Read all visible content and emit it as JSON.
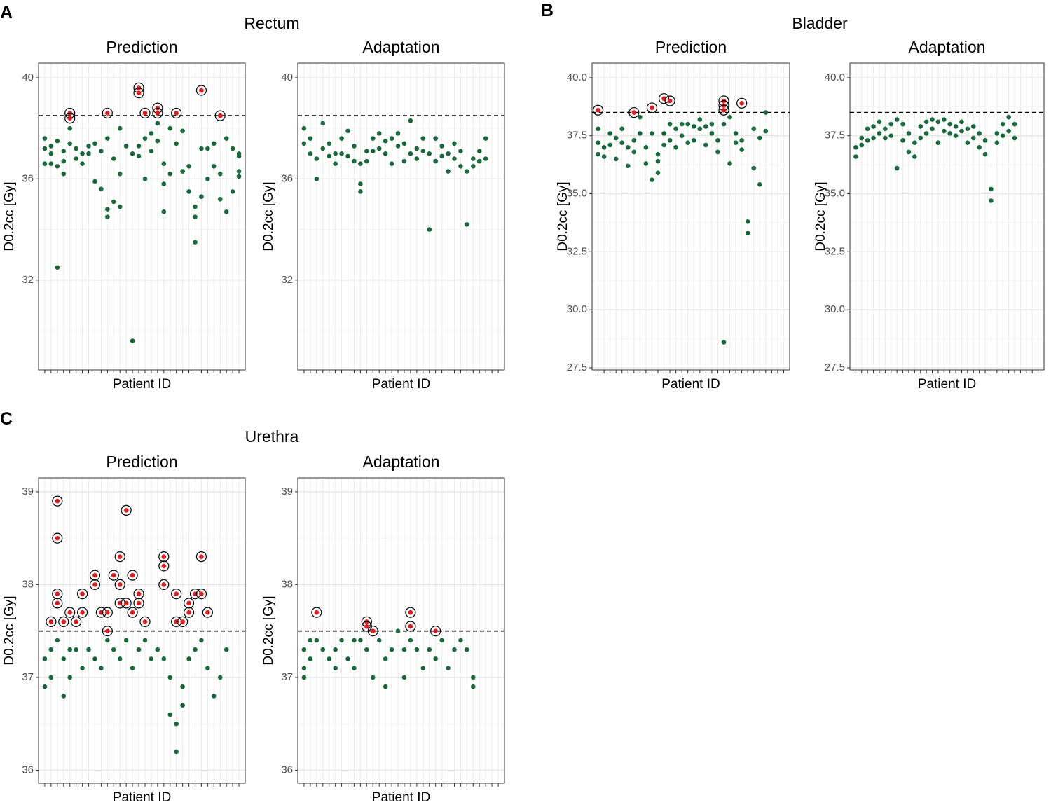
{
  "groups": [
    {
      "letter": "A",
      "title": "Rectum"
    },
    {
      "letter": "B",
      "title": "Bladder"
    },
    {
      "letter": "C",
      "title": "Urethra"
    }
  ],
  "chart_data": [
    {
      "type": "scatter",
      "title": "Prediction",
      "xlabel": "Patient ID",
      "ylabel": "D0.2cc [Gy]",
      "xlim": [
        0,
        33
      ],
      "xticks": [
        1,
        2,
        3,
        4,
        5,
        6,
        7,
        8,
        9,
        10,
        11,
        12,
        13,
        14,
        15,
        16,
        17,
        18,
        19,
        20,
        21,
        22,
        23,
        24,
        25,
        26,
        27,
        28,
        29,
        30,
        31,
        32
      ],
      "ylim": [
        28.45,
        40.58
      ],
      "yticks": [
        32,
        36,
        40
      ],
      "threshold": 38.5,
      "grid": true,
      "series": [
        {
          "color": "#18693a",
          "x": [
            1,
            1,
            1,
            2,
            2,
            2,
            3,
            3,
            3,
            4,
            4,
            4,
            5,
            5,
            6,
            6,
            7,
            7,
            8,
            8,
            9,
            9,
            10,
            10,
            11,
            11,
            11,
            12,
            12,
            13,
            13,
            13,
            14,
            15,
            15,
            16,
            16,
            17,
            17,
            18,
            18,
            19,
            19,
            20,
            20,
            20,
            21,
            21,
            22,
            23,
            23,
            24,
            24,
            25,
            25,
            25,
            26,
            26,
            27,
            27,
            28,
            28,
            29,
            29,
            30,
            30,
            31,
            31,
            32,
            32,
            32,
            32
          ],
          "values": [
            37.6,
            37.2,
            36.6,
            37.3,
            37.0,
            36.6,
            32.5,
            37.5,
            36.5,
            36.2,
            37.1,
            36.7,
            38.0,
            37.4,
            37.2,
            36.8,
            37.0,
            36.6,
            37.3,
            37.0,
            35.9,
            37.4,
            35.6,
            37.1,
            34.5,
            34.8,
            37.6,
            35.1,
            36.8,
            36.2,
            38.0,
            34.9,
            37.3,
            29.6,
            37.0,
            37.3,
            36.9,
            36.0,
            37.6,
            37.8,
            37.1,
            38.2,
            37.5,
            34.7,
            35.8,
            36.6,
            38.0,
            36.2,
            37.4,
            36.3,
            37.9,
            35.5,
            36.5,
            33.5,
            34.5,
            34.9,
            37.2,
            35.3,
            37.2,
            36.0,
            36.5,
            37.4,
            35.2,
            36.2,
            34.7,
            37.6,
            35.5,
            37.2,
            36.3,
            37.0,
            36.1,
            36.9
          ]
        },
        {
          "color": "#e31a1c",
          "circled": true,
          "x": [
            5,
            5,
            11,
            16,
            16,
            17,
            19,
            19,
            22,
            26,
            29
          ],
          "values": [
            38.6,
            38.4,
            38.6,
            39.6,
            39.4,
            38.6,
            38.8,
            38.6,
            38.6,
            39.5,
            38.5
          ]
        }
      ]
    },
    {
      "type": "scatter",
      "title": "Adaptation",
      "xlabel": "Patient ID",
      "ylabel": "D0.2cc [Gy]",
      "xlim": [
        0,
        33
      ],
      "xticks": [
        1,
        2,
        3,
        4,
        5,
        6,
        7,
        8,
        9,
        10,
        11,
        12,
        13,
        14,
        15,
        16,
        17,
        18,
        19,
        20,
        21,
        22,
        23,
        24,
        25,
        26,
        27,
        28,
        29,
        30,
        31,
        32
      ],
      "ylim": [
        28.45,
        40.58
      ],
      "yticks": [
        32,
        36,
        40
      ],
      "threshold": 38.5,
      "grid": true,
      "series": [
        {
          "color": "#18693a",
          "x": [
            1,
            1,
            2,
            2,
            3,
            3,
            4,
            4,
            5,
            5,
            6,
            6,
            7,
            7,
            8,
            8,
            9,
            9,
            10,
            10,
            10,
            11,
            11,
            12,
            12,
            13,
            13,
            14,
            14,
            15,
            15,
            16,
            16,
            17,
            17,
            18,
            18,
            19,
            19,
            20,
            20,
            21,
            21,
            22,
            22,
            23,
            23,
            24,
            24,
            25,
            25,
            26,
            26,
            27,
            27,
            28,
            28,
            29,
            29,
            30,
            30
          ],
          "values": [
            38.0,
            37.4,
            37.6,
            37.0,
            36.0,
            36.8,
            38.2,
            37.2,
            37.4,
            36.9,
            37.0,
            36.6,
            37.6,
            37.0,
            37.9,
            36.9,
            37.3,
            36.7,
            36.6,
            35.5,
            35.8,
            37.1,
            36.7,
            37.6,
            37.1,
            37.8,
            37.2,
            37.5,
            37.0,
            37.6,
            36.6,
            37.8,
            37.3,
            37.4,
            36.7,
            38.3,
            37.0,
            37.2,
            36.8,
            37.6,
            37.1,
            37.0,
            34.0,
            37.6,
            36.7,
            37.3,
            36.9,
            36.3,
            37.0,
            37.4,
            36.8,
            37.1,
            36.5,
            34.2,
            36.3,
            36.8,
            36.5,
            37.1,
            36.7,
            37.6,
            36.8
          ]
        }
      ]
    },
    {
      "type": "scatter",
      "title": "Prediction",
      "xlabel": "Patient ID",
      "ylabel": "D0.2cc [Gy]",
      "xlim": [
        0,
        33
      ],
      "xticks": [
        1,
        2,
        3,
        4,
        5,
        6,
        7,
        8,
        9,
        10,
        11,
        12,
        13,
        14,
        15,
        16,
        17,
        18,
        19,
        20,
        21,
        22,
        23,
        24,
        25,
        26,
        27,
        28,
        29,
        30,
        31,
        32
      ],
      "ylim": [
        27.41,
        40.63
      ],
      "yticks": [
        27.5,
        {
          "value": 30,
          "label": "30.0"
        },
        32.5,
        {
          "value": 35,
          "label": "35.0"
        },
        37.5,
        {
          "value": 40,
          "label": "40.0"
        }
      ],
      "threshold": 38.5,
      "grid": true,
      "series": [
        {
          "color": "#18693a",
          "x": [
            1,
            1,
            1,
            2,
            2,
            3,
            3,
            4,
            4,
            5,
            5,
            6,
            6,
            7,
            7,
            8,
            8,
            9,
            9,
            10,
            10,
            11,
            11,
            11,
            12,
            12,
            13,
            13,
            14,
            14,
            15,
            15,
            16,
            16,
            17,
            17,
            18,
            18,
            19,
            19,
            20,
            20,
            21,
            21,
            22,
            22,
            23,
            23,
            24,
            24,
            25,
            25,
            26,
            26,
            27,
            27,
            28,
            28,
            29,
            29
          ],
          "values": [
            37.8,
            37.2,
            36.7,
            37.0,
            36.6,
            37.6,
            37.1,
            37.4,
            36.5,
            37.8,
            37.2,
            36.2,
            37.0,
            36.8,
            37.3,
            38.3,
            37.6,
            37.0,
            36.3,
            37.6,
            35.6,
            36.4,
            35.9,
            36.7,
            37.6,
            37.1,
            38.0,
            37.3,
            37.8,
            37.0,
            37.5,
            38.0,
            38.0,
            37.2,
            37.9,
            37.3,
            38.2,
            37.8,
            37.9,
            37.1,
            38.0,
            37.6,
            37.3,
            36.8,
            38.0,
            28.6,
            38.3,
            36.3,
            37.6,
            37.2,
            37.3,
            36.9,
            33.3,
            33.8,
            36.1,
            37.8,
            37.4,
            35.4,
            38.5,
            37.7
          ]
        },
        {
          "color": "#e31a1c",
          "circled": true,
          "x": [
            1,
            7,
            10,
            12,
            13,
            22,
            22,
            22,
            25
          ],
          "values": [
            38.6,
            38.5,
            38.7,
            39.1,
            39.0,
            39.0,
            38.8,
            38.6,
            38.9
          ]
        }
      ]
    },
    {
      "type": "scatter",
      "title": "Adaptation",
      "xlabel": "Patient ID",
      "ylabel": "D0.2cc [Gy]",
      "xlim": [
        0,
        33
      ],
      "xticks": [
        1,
        2,
        3,
        4,
        5,
        6,
        7,
        8,
        9,
        10,
        11,
        12,
        13,
        14,
        15,
        16,
        17,
        18,
        19,
        20,
        21,
        22,
        23,
        24,
        25,
        26,
        27,
        28,
        29,
        30,
        31,
        32
      ],
      "ylim": [
        27.41,
        40.63
      ],
      "yticks": [
        27.5,
        {
          "value": 30,
          "label": "30.0"
        },
        32.5,
        {
          "value": 35,
          "label": "35.0"
        },
        37.5,
        {
          "value": 40,
          "label": "40.0"
        }
      ],
      "threshold": 38.5,
      "grid": true,
      "series": [
        {
          "color": "#18693a",
          "x": [
            1,
            1,
            2,
            2,
            3,
            3,
            4,
            4,
            5,
            5,
            6,
            6,
            7,
            7,
            8,
            8,
            9,
            9,
            10,
            10,
            11,
            11,
            12,
            12,
            13,
            13,
            14,
            14,
            15,
            15,
            16,
            16,
            17,
            17,
            18,
            18,
            19,
            19,
            20,
            20,
            21,
            21,
            22,
            22,
            23,
            23,
            24,
            24,
            25,
            25,
            26,
            26,
            27,
            27,
            28,
            28
          ],
          "values": [
            37.0,
            36.6,
            37.4,
            37.1,
            37.8,
            37.3,
            37.9,
            37.4,
            38.1,
            37.6,
            37.8,
            37.4,
            38.0,
            37.5,
            38.2,
            36.1,
            38.0,
            37.3,
            37.6,
            36.8,
            37.2,
            36.6,
            37.9,
            37.4,
            38.1,
            37.6,
            38.2,
            37.8,
            38.1,
            37.2,
            38.2,
            37.7,
            38.0,
            37.6,
            37.9,
            37.5,
            38.1,
            37.7,
            37.8,
            37.2,
            37.9,
            37.4,
            37.6,
            37.0,
            37.3,
            36.7,
            35.2,
            34.7,
            37.6,
            37.2,
            38.0,
            37.5,
            38.3,
            37.7,
            38.0,
            37.4
          ]
        }
      ]
    },
    {
      "type": "scatter",
      "title": "Prediction",
      "xlabel": "Patient ID",
      "ylabel": "D0.2cc [Gy]",
      "xlim": [
        0,
        33
      ],
      "xticks": [
        1,
        2,
        3,
        4,
        5,
        6,
        7,
        8,
        9,
        10,
        11,
        12,
        13,
        14,
        15,
        16,
        17,
        18,
        19,
        20,
        21,
        22,
        23,
        24,
        25,
        26,
        27,
        28,
        29,
        30,
        31,
        32
      ],
      "ylim": [
        35.86,
        39.15
      ],
      "yticks": [
        36,
        37,
        38,
        39
      ],
      "threshold": 37.5,
      "grid": true,
      "series": [
        {
          "color": "#18693a",
          "x": [
            1,
            1,
            2,
            2,
            3,
            4,
            4,
            5,
            5,
            6,
            7,
            8,
            9,
            10,
            11,
            12,
            13,
            14,
            15,
            16,
            17,
            18,
            19,
            20,
            21,
            21,
            22,
            22,
            23,
            23,
            24,
            25,
            26,
            27,
            28,
            29,
            30
          ],
          "values": [
            36.9,
            37.2,
            37.3,
            37.0,
            37.4,
            36.8,
            37.2,
            37.0,
            37.3,
            37.3,
            37.1,
            37.3,
            37.2,
            37.1,
            37.4,
            37.3,
            37.2,
            37.4,
            37.1,
            37.3,
            37.4,
            37.2,
            37.3,
            37.2,
            36.6,
            37.0,
            36.2,
            36.5,
            36.7,
            36.9,
            37.2,
            37.3,
            37.4,
            37.1,
            36.8,
            37.0,
            37.3
          ]
        },
        {
          "color": "#e31a1c",
          "circled": true,
          "x": [
            2,
            3,
            3,
            3,
            3,
            4,
            5,
            6,
            7,
            7,
            9,
            9,
            10,
            11,
            11,
            12,
            13,
            13,
            13,
            14,
            14,
            15,
            15,
            16,
            16,
            17,
            20,
            20,
            20,
            22,
            22,
            23,
            24,
            24,
            25,
            26,
            26,
            27
          ],
          "values": [
            37.6,
            38.9,
            38.5,
            37.9,
            37.8,
            37.6,
            37.7,
            37.6,
            37.9,
            37.7,
            38.1,
            38.0,
            37.7,
            37.5,
            37.7,
            38.1,
            38.3,
            38.0,
            37.8,
            38.8,
            37.8,
            38.1,
            37.7,
            37.9,
            37.8,
            37.6,
            38.3,
            38.2,
            38.0,
            37.9,
            37.6,
            37.6,
            37.8,
            37.7,
            37.9,
            38.3,
            37.9,
            37.7
          ]
        }
      ]
    },
    {
      "type": "scatter",
      "title": "Adaptation",
      "xlabel": "Patient ID",
      "ylabel": "D0.2cc [Gy]",
      "xlim": [
        0,
        33
      ],
      "xticks": [
        1,
        2,
        3,
        4,
        5,
        6,
        7,
        8,
        9,
        10,
        11,
        12,
        13,
        14,
        15,
        16,
        17,
        18,
        19,
        20,
        21,
        22,
        23,
        24,
        25,
        26,
        27,
        28,
        29,
        30,
        31,
        32
      ],
      "ylim": [
        35.86,
        39.15
      ],
      "yticks": [
        36,
        37,
        38,
        39
      ],
      "threshold": 37.5,
      "grid": true,
      "series": [
        {
          "color": "#18693a",
          "x": [
            1,
            1,
            1,
            2,
            2,
            3,
            4,
            5,
            6,
            6,
            7,
            8,
            9,
            9,
            10,
            11,
            12,
            13,
            14,
            14,
            15,
            16,
            17,
            17,
            18,
            19,
            20,
            21,
            22,
            23,
            24,
            25,
            26,
            27,
            28,
            28
          ],
          "values": [
            37.3,
            37.1,
            37.0,
            37.4,
            37.2,
            37.4,
            37.3,
            37.2,
            37.3,
            37.1,
            37.4,
            37.2,
            37.4,
            37.1,
            37.4,
            37.3,
            37.0,
            37.4,
            36.9,
            37.2,
            37.3,
            37.5,
            37.0,
            37.3,
            37.4,
            37.3,
            37.1,
            37.3,
            37.2,
            37.4,
            37.1,
            37.3,
            37.4,
            37.3,
            37.0,
            36.9
          ]
        },
        {
          "color": "#e31a1c",
          "circled": true,
          "x": [
            3,
            11,
            11,
            12,
            18,
            18,
            22
          ],
          "values": [
            37.7,
            37.6,
            37.55,
            37.5,
            37.7,
            37.55,
            37.5
          ]
        }
      ]
    }
  ]
}
